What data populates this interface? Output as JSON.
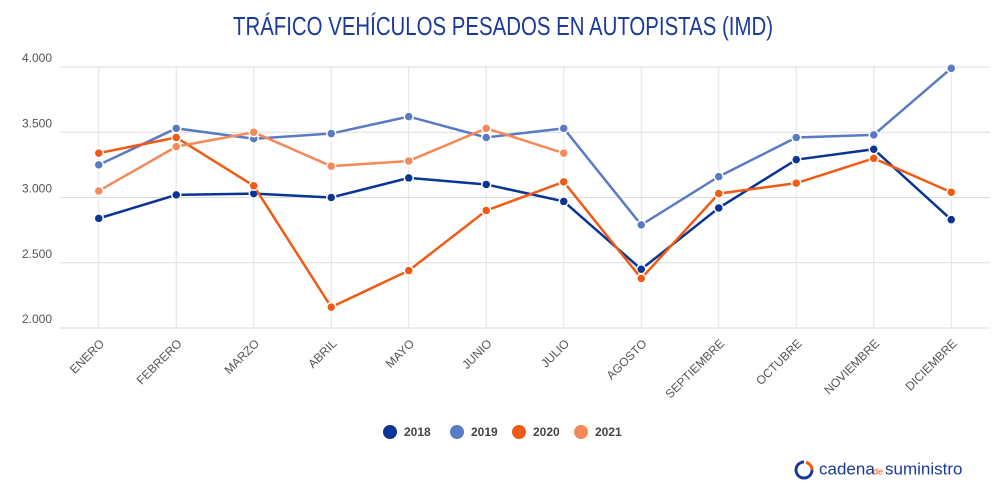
{
  "chart_data": {
    "type": "line",
    "title": "TRÁFICO VEHÍCULOS PESADOS EN AUTOPISTAS (IMD)",
    "categories": [
      "ENERO",
      "FEBRERO",
      "MARZO",
      "ABRIL",
      "MAYO",
      "JUNIO",
      "JULIO",
      "AGOSTO",
      "SEPTIEMBRE",
      "OCTUBRE",
      "NOVIEMBRE",
      "DICIEMBRE"
    ],
    "series": [
      {
        "name": "2018",
        "color": "#0a3596",
        "values": [
          2840,
          3020,
          3030,
          3000,
          3150,
          3100,
          2970,
          2450,
          2920,
          3290,
          3370,
          2830
        ]
      },
      {
        "name": "2019",
        "color": "#5a7bc4",
        "values": [
          3250,
          3530,
          3450,
          3490,
          3620,
          3460,
          3530,
          2790,
          3160,
          3460,
          3480,
          3990
        ]
      },
      {
        "name": "2020",
        "color": "#f05a14",
        "values": [
          3340,
          3460,
          3090,
          2160,
          2440,
          2900,
          3120,
          2380,
          3030,
          3110,
          3300,
          3040
        ]
      },
      {
        "name": "2021",
        "color": "#f5895a",
        "values": [
          3050,
          3390,
          3500,
          3240,
          3280,
          3530,
          3340,
          null,
          null,
          null,
          null,
          null
        ]
      }
    ],
    "ylim": [
      2000,
      4000
    ],
    "yticks": [
      {
        "value": 2000,
        "label": "2.000"
      },
      {
        "value": 2500,
        "label": "2.500"
      },
      {
        "value": 3000,
        "label": "3.000"
      },
      {
        "value": 3500,
        "label": "3.500"
      },
      {
        "value": 4000,
        "label": "4.000"
      }
    ],
    "grid": true,
    "legend": "bottom",
    "logo": [
      "cadena",
      "de",
      "suministro"
    ]
  }
}
